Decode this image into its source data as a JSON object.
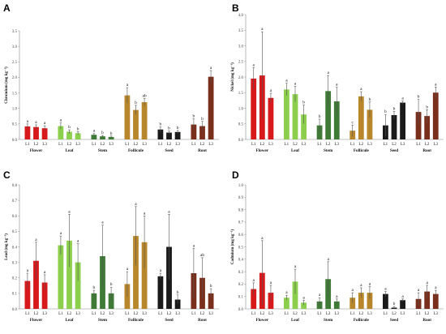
{
  "chart_data": [
    {
      "panel": "A",
      "type": "bar",
      "ylabel": "Chromium (mg kg⁻¹)",
      "ylim": [
        0,
        3.5
      ],
      "yticks": [
        0,
        0.5,
        1,
        1.5,
        2,
        2.5,
        3,
        3.5
      ],
      "ytick_decimals": 1,
      "groups": [
        "Flower",
        "Leaf",
        "Stem",
        "Follicule",
        "Seed",
        "Root"
      ],
      "levels": [
        "L1",
        "L2",
        "L3"
      ],
      "colors": [
        "#d7191c",
        "#8ccf4d",
        "#3f7a36",
        "#b8862b",
        "#1a1a1a",
        "#7a2e1c"
      ],
      "values": [
        [
          0.42,
          0.4,
          0.36
        ],
        [
          0.43,
          0.25,
          0.2
        ],
        [
          0.15,
          0.1,
          0.08
        ],
        [
          1.42,
          0.95,
          1.2
        ],
        [
          0.32,
          0.22,
          0.24
        ],
        [
          0.48,
          0.43,
          2.02
        ]
      ],
      "errors": [
        [
          0.08,
          0.07,
          0.08
        ],
        [
          0.1,
          0.06,
          0.05
        ],
        [
          0.04,
          0.03,
          0.03
        ],
        [
          0.25,
          0.15,
          0.12
        ],
        [
          0.08,
          0.05,
          0.05
        ],
        [
          0.18,
          0.15,
          0.2
        ]
      ],
      "letters": [
        [
          "a",
          "a",
          "a"
        ],
        [
          "a",
          "b",
          "b"
        ],
        [
          "a",
          "b",
          "b"
        ],
        [
          "a",
          "b",
          "ab"
        ],
        [
          "b",
          "b",
          "b"
        ],
        [
          "b",
          "b",
          "a"
        ]
      ]
    },
    {
      "panel": "B",
      "type": "bar",
      "ylabel": "Nickel (mg kg⁻¹)",
      "ylim": [
        0,
        4
      ],
      "yticks": [
        0,
        0.5,
        1,
        1.5,
        2,
        2.5,
        3,
        3.5,
        4
      ],
      "ytick_decimals": 1,
      "groups": [
        "Flower",
        "Leaf",
        "Stem",
        "Follicule",
        "Seed",
        "Root"
      ],
      "levels": [
        "L1",
        "L2",
        "L3"
      ],
      "colors": [
        "#d7191c",
        "#8ccf4d",
        "#3f7a36",
        "#b8862b",
        "#1a1a1a",
        "#7a2e1c"
      ],
      "values": [
        [
          1.95,
          2.05,
          1.33
        ],
        [
          1.6,
          1.45,
          0.8
        ],
        [
          0.45,
          1.55,
          1.22
        ],
        [
          0.28,
          1.38,
          0.95
        ],
        [
          0.45,
          0.78,
          1.18
        ],
        [
          0.88,
          0.75,
          1.5
        ]
      ],
      "errors": [
        [
          0.35,
          1.4,
          0.15
        ],
        [
          0.2,
          0.25,
          0.3
        ],
        [
          0.2,
          0.5,
          0.45
        ],
        [
          0.18,
          0.15,
          0.25
        ],
        [
          0.35,
          0.12,
          0.05
        ],
        [
          0.4,
          0.2,
          0.18
        ]
      ],
      "letters": [
        [
          "a",
          "a",
          "a"
        ],
        [
          "a",
          "a",
          "b"
        ],
        [
          "b",
          "a",
          "a"
        ],
        [
          "c",
          "a",
          "b"
        ],
        [
          "b",
          "b",
          "a"
        ],
        [
          "b",
          "b",
          "a"
        ]
      ]
    },
    {
      "panel": "C",
      "type": "bar",
      "ylabel": "Lead (mg kg⁻¹)",
      "ylim": [
        0,
        0.8
      ],
      "yticks": [
        0,
        0.1,
        0.2,
        0.3,
        0.4,
        0.5,
        0.6,
        0.7,
        0.8
      ],
      "ytick_decimals": 1,
      "groups": [
        "Flower",
        "Leaf",
        "Stem",
        "Follicule",
        "Seed",
        "Root"
      ],
      "levels": [
        "L1",
        "L2",
        "L3"
      ],
      "colors": [
        "#d7191c",
        "#8ccf4d",
        "#3f7a36",
        "#b8862b",
        "#1a1a1a",
        "#7a2e1c"
      ],
      "values": [
        [
          0.18,
          0.31,
          0.17
        ],
        [
          0.41,
          0.44,
          0.3
        ],
        [
          0.1,
          0.34,
          0.1
        ],
        [
          0.16,
          0.47,
          0.43
        ],
        [
          0.21,
          0.4,
          0.06
        ],
        [
          0.23,
          0.2,
          0.1
        ]
      ],
      "errors": [
        [
          0.05,
          0.12,
          0.05
        ],
        [
          0.06,
          0.17,
          0.12
        ],
        [
          0.02,
          0.2,
          0.04
        ],
        [
          0.08,
          0.19,
          0.17
        ],
        [
          0.02,
          0.21,
          0.03
        ],
        [
          0.16,
          0.13,
          0.03
        ]
      ],
      "letters": [
        [
          "a",
          "a",
          "a"
        ],
        [
          "a",
          "a",
          "a"
        ],
        [
          "b",
          "a",
          "b"
        ],
        [
          "a",
          "a",
          "a"
        ],
        [
          "a",
          "a",
          "b"
        ],
        [
          "a",
          "ab",
          "b"
        ]
      ]
    },
    {
      "panel": "D",
      "type": "bar",
      "ylabel": "Cadmium (mg kg⁻¹)",
      "ylim": [
        0,
        1.0
      ],
      "yticks": [
        0,
        0.1,
        0.2,
        0.3,
        0.4,
        0.5,
        0.6,
        0.7,
        0.8,
        0.9,
        1.0
      ],
      "ytick_decimals": 1,
      "groups": [
        "Flower",
        "Leaf",
        "Stem",
        "Follicule",
        "Seed",
        "Root"
      ],
      "levels": [
        "L1",
        "L2",
        "L3"
      ],
      "colors": [
        "#d7191c",
        "#8ccf4d",
        "#3f7a36",
        "#b8862b",
        "#1a1a1a",
        "#7a2e1c"
      ],
      "values": [
        [
          0.16,
          0.29,
          0.13
        ],
        [
          0.09,
          0.22,
          0.05
        ],
        [
          0.06,
          0.24,
          0.06
        ],
        [
          0.09,
          0.13,
          0.13
        ],
        [
          0.12,
          0.01,
          0.07
        ],
        [
          0.08,
          0.14,
          0.12
        ]
      ],
      "errors": [
        [
          0.05,
          0.26,
          0.06
        ],
        [
          0.02,
          0.1,
          0.02
        ],
        [
          0.03,
          0.14,
          0.02
        ],
        [
          0.04,
          0.04,
          0.05
        ],
        [
          0.02,
          0.01,
          0.01
        ],
        [
          0.05,
          0.05,
          0.03
        ]
      ],
      "letters": [
        [
          "a",
          "a",
          "a"
        ],
        [
          "a",
          "a",
          "a"
        ],
        [
          "a",
          "a",
          "a"
        ],
        [
          "a",
          "a",
          "a"
        ],
        [
          "a",
          "b",
          "a"
        ],
        [
          "a",
          "a",
          "a"
        ]
      ]
    }
  ]
}
